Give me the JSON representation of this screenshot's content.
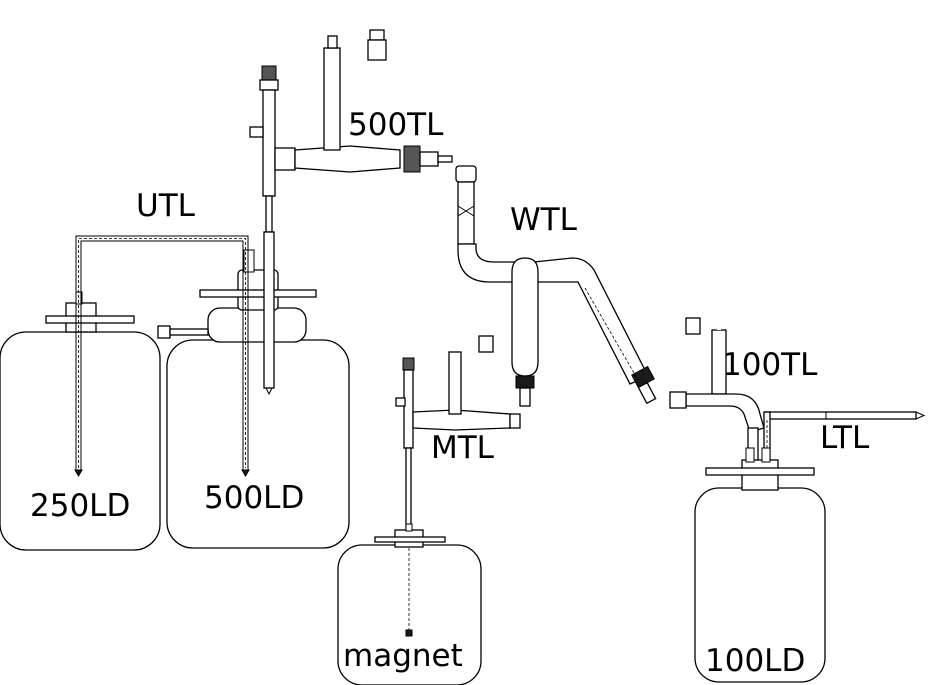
{
  "labels": {
    "utl": "UTL",
    "tl500": "500TL",
    "wtl": "WTL",
    "tl100": "100TL",
    "ltl": "LTL",
    "mtl": "MTL",
    "ld250": "250LD",
    "ld500": "500LD",
    "magnet": "magnet",
    "ld100": "100LD"
  }
}
